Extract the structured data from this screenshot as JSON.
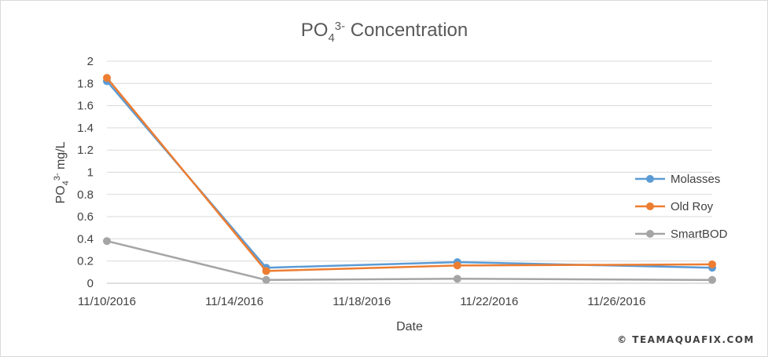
{
  "chart_data": {
    "type": "line",
    "title": {
      "base": "PO",
      "sub": "4",
      "sup": "3-",
      "rest": " Concentration"
    },
    "xlabel": "Date",
    "ylabel": {
      "base": "PO",
      "sub": "4",
      "sup": "3-",
      "rest": " mg/L"
    },
    "ylim": [
      0,
      2
    ],
    "yticks": [
      "0",
      "0.2",
      "0.4",
      "0.6",
      "0.8",
      "1",
      "1.2",
      "1.4",
      "1.6",
      "1.8",
      "2"
    ],
    "xlim": [
      "2016-11-10",
      "2016-11-29"
    ],
    "xticks": [
      {
        "date": "2016-11-10",
        "label": "11/10/2016"
      },
      {
        "date": "2016-11-14",
        "label": "11/14/2016"
      },
      {
        "date": "2016-11-18",
        "label": "11/18/2016"
      },
      {
        "date": "2016-11-22",
        "label": "11/22/2016"
      },
      {
        "date": "2016-11-26",
        "label": "11/26/2016"
      }
    ],
    "grid": true,
    "legend_position": "right",
    "series": [
      {
        "name": "Molasses",
        "color": "#5b9bd5",
        "points": [
          [
            "2016-11-10",
            1.82
          ],
          [
            "2016-11-15",
            0.14
          ],
          [
            "2016-11-21",
            0.19
          ],
          [
            "2016-11-29",
            0.14
          ]
        ]
      },
      {
        "name": "Old Roy",
        "color": "#ed7d31",
        "points": [
          [
            "2016-11-10",
            1.85
          ],
          [
            "2016-11-15",
            0.11
          ],
          [
            "2016-11-21",
            0.16
          ],
          [
            "2016-11-29",
            0.17
          ]
        ]
      },
      {
        "name": "SmartBOD",
        "color": "#a5a5a5",
        "points": [
          [
            "2016-11-10",
            0.38
          ],
          [
            "2016-11-15",
            0.03
          ],
          [
            "2016-11-21",
            0.04
          ],
          [
            "2016-11-29",
            0.03
          ]
        ]
      }
    ]
  },
  "watermark": "© TEAMAQUAFIX.COM"
}
